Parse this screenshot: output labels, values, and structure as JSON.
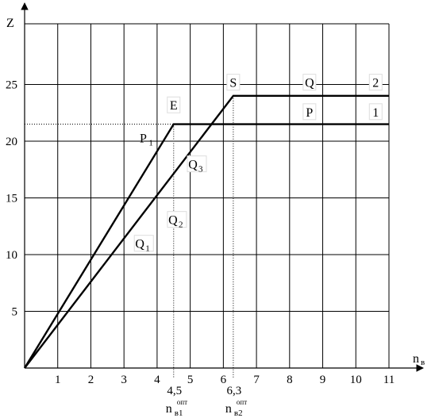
{
  "chart_data": {
    "type": "line",
    "title": "",
    "xlabel": {
      "main": "n",
      "sub": "в"
    },
    "ylabel": "Z",
    "xlim": [
      0,
      11
    ],
    "ylim": [
      0,
      30
    ],
    "x_ticks": [
      "1",
      "2",
      "3",
      "4",
      "5",
      "6",
      "7",
      "8",
      "9",
      "10",
      "11"
    ],
    "y_ticks": [
      "5",
      "10",
      "15",
      "20",
      "25"
    ],
    "grid": true,
    "series": [
      {
        "id": "1",
        "points": [
          [
            0,
            0
          ],
          [
            4.5,
            21.5
          ],
          [
            11,
            21.5
          ]
        ]
      },
      {
        "id": "2",
        "points": [
          [
            0,
            0
          ],
          [
            6.3,
            24
          ],
          [
            11,
            24
          ]
        ]
      }
    ],
    "reference_lines": [
      {
        "orientation": "vertical",
        "x": 4.5,
        "style": "dotted"
      },
      {
        "orientation": "vertical",
        "x": 6.3,
        "style": "dotted"
      },
      {
        "orientation": "horizontal",
        "y": 21.5,
        "style": "dotted"
      }
    ],
    "point_labels": [
      {
        "text": "E",
        "x": 4.5,
        "y": 23.2,
        "boxed": true
      },
      {
        "text": "S",
        "x": 6.3,
        "y": 25.2,
        "boxed": true
      },
      {
        "text": "Q",
        "x": 8.6,
        "y": 25.2,
        "boxed": true
      },
      {
        "text": "2",
        "x": 10.6,
        "y": 25.2,
        "boxed": true
      },
      {
        "text": "P",
        "x": 8.6,
        "y": 22.6,
        "boxed": true
      },
      {
        "text": "1",
        "x": 10.6,
        "y": 22.6,
        "boxed": true
      },
      {
        "text": "P",
        "sub": "1",
        "x": 3.7,
        "y": 20.3,
        "boxed": false
      },
      {
        "text": "Q",
        "sub": "3",
        "x": 5.2,
        "y": 18.0,
        "boxed": true
      },
      {
        "text": "Q",
        "sub": "2",
        "x": 4.6,
        "y": 13.1,
        "boxed": true
      },
      {
        "text": "Q",
        "sub": "1",
        "x": 3.6,
        "y": 11.0,
        "boxed": true
      }
    ],
    "x_annotations": [
      {
        "value": "4,5",
        "x": 4.5,
        "label": "n",
        "sub": "в1",
        "sup": "опт"
      },
      {
        "value": "6,3",
        "x": 6.3,
        "label": "n",
        "sub": "в2",
        "sup": "опт"
      }
    ]
  }
}
